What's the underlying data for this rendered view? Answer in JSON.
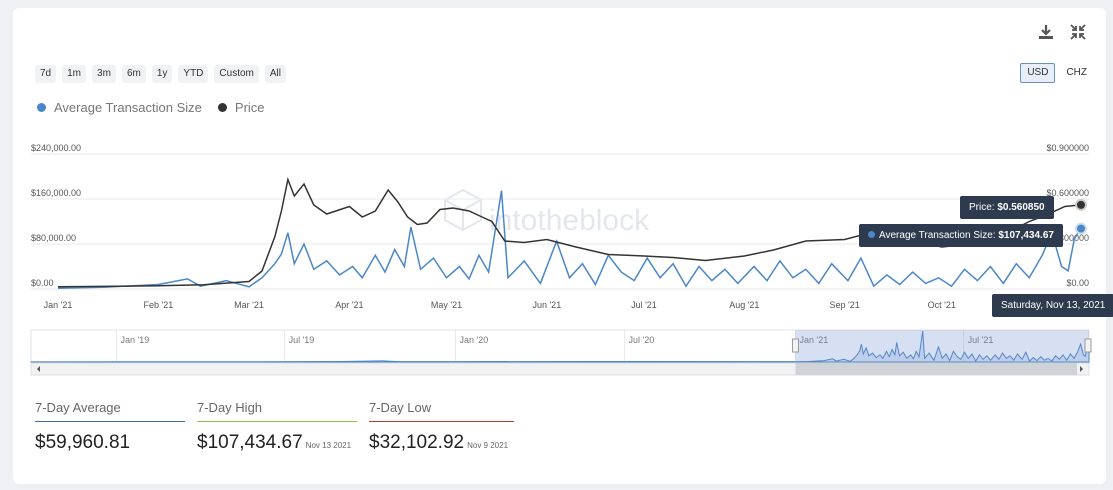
{
  "toolbar": {
    "download_icon": "download-icon",
    "collapse_icon": "collapse-icon"
  },
  "ranges": [
    "7d",
    "1m",
    "3m",
    "6m",
    "1y",
    "YTD",
    "Custom",
    "All"
  ],
  "currencies": [
    "USD",
    "CHZ"
  ],
  "active_currency": "USD",
  "watermark": "intotheblock",
  "tooltip": {
    "price_label": "Price: ",
    "price_value": "$0.560850",
    "ats_label": "Average Transaction Size: ",
    "ats_value": "$107,434.67",
    "date": "Saturday, Nov 13, 2021"
  },
  "chart_data": {
    "type": "line",
    "legend_position": "top-left",
    "series": [
      {
        "name": "Average Transaction Size",
        "color": "#4a86c8",
        "axis": "left"
      },
      {
        "name": "Price",
        "color": "#333333",
        "axis": "right"
      }
    ],
    "y_left": {
      "ticks": [
        "$0.00",
        "$80,000.00",
        "$160,000.00",
        "$240,000.00"
      ],
      "range": [
        0,
        240000
      ]
    },
    "y_right": {
      "ticks": [
        "$0.00",
        "$0.300000",
        "$0.600000",
        "$0.900000"
      ],
      "range": [
        0,
        0.9
      ]
    },
    "x_ticks": [
      "Jan '21",
      "Feb '21",
      "Mar '21",
      "Apr '21",
      "May '21",
      "Jun '21",
      "Jul '21",
      "Aug '21",
      "Sep '21",
      "Oct '21"
    ],
    "x_range": [
      "2021-01-01",
      "2021-11-13"
    ],
    "price_points": [
      [
        "2021-01-01",
        0.015
      ],
      [
        "2021-01-15",
        0.017
      ],
      [
        "2021-02-01",
        0.022
      ],
      [
        "2021-02-15",
        0.028
      ],
      [
        "2021-03-01",
        0.05
      ],
      [
        "2021-03-05",
        0.12
      ],
      [
        "2021-03-09",
        0.35
      ],
      [
        "2021-03-11",
        0.52
      ],
      [
        "2021-03-13",
        0.73
      ],
      [
        "2021-03-15",
        0.62
      ],
      [
        "2021-03-18",
        0.7
      ],
      [
        "2021-03-21",
        0.56
      ],
      [
        "2021-03-25",
        0.5
      ],
      [
        "2021-04-01",
        0.55
      ],
      [
        "2021-04-05",
        0.48
      ],
      [
        "2021-04-09",
        0.52
      ],
      [
        "2021-04-13",
        0.66
      ],
      [
        "2021-04-16",
        0.58
      ],
      [
        "2021-04-19",
        0.48
      ],
      [
        "2021-04-22",
        0.43
      ],
      [
        "2021-04-25",
        0.44
      ],
      [
        "2021-04-29",
        0.53
      ],
      [
        "2021-05-03",
        0.54
      ],
      [
        "2021-05-08",
        0.52
      ],
      [
        "2021-05-12",
        0.48
      ],
      [
        "2021-05-15",
        0.45
      ],
      [
        "2021-05-19",
        0.32
      ],
      [
        "2021-05-25",
        0.31
      ],
      [
        "2021-06-01",
        0.33
      ],
      [
        "2021-06-10",
        0.28
      ],
      [
        "2021-06-20",
        0.23
      ],
      [
        "2021-07-01",
        0.22
      ],
      [
        "2021-07-10",
        0.21
      ],
      [
        "2021-07-20",
        0.19
      ],
      [
        "2021-08-01",
        0.22
      ],
      [
        "2021-08-10",
        0.26
      ],
      [
        "2021-08-20",
        0.32
      ],
      [
        "2021-09-01",
        0.33
      ],
      [
        "2021-09-08",
        0.37
      ],
      [
        "2021-09-15",
        0.33
      ],
      [
        "2021-09-25",
        0.31
      ],
      [
        "2021-10-01",
        0.28
      ],
      [
        "2021-10-10",
        0.3
      ],
      [
        "2021-10-20",
        0.36
      ],
      [
        "2021-10-28",
        0.45
      ],
      [
        "2021-11-03",
        0.5
      ],
      [
        "2021-11-08",
        0.55
      ],
      [
        "2021-11-13",
        0.56085
      ]
    ],
    "ats_points": [
      [
        "2021-01-01",
        1500
      ],
      [
        "2021-01-15",
        3000
      ],
      [
        "2021-02-01",
        8000
      ],
      [
        "2021-02-10",
        18000
      ],
      [
        "2021-02-14",
        5000
      ],
      [
        "2021-02-22",
        15000
      ],
      [
        "2021-03-01",
        4000
      ],
      [
        "2021-03-05",
        20000
      ],
      [
        "2021-03-09",
        45000
      ],
      [
        "2021-03-11",
        62000
      ],
      [
        "2021-03-13",
        100000
      ],
      [
        "2021-03-15",
        45000
      ],
      [
        "2021-03-18",
        80000
      ],
      [
        "2021-03-21",
        35000
      ],
      [
        "2021-03-25",
        50000
      ],
      [
        "2021-03-29",
        25000
      ],
      [
        "2021-04-02",
        40000
      ],
      [
        "2021-04-05",
        20000
      ],
      [
        "2021-04-09",
        60000
      ],
      [
        "2021-04-12",
        30000
      ],
      [
        "2021-04-15",
        70000
      ],
      [
        "2021-04-18",
        40000
      ],
      [
        "2021-04-20",
        110000
      ],
      [
        "2021-04-23",
        35000
      ],
      [
        "2021-04-27",
        55000
      ],
      [
        "2021-05-01",
        20000
      ],
      [
        "2021-05-05",
        40000
      ],
      [
        "2021-05-08",
        18000
      ],
      [
        "2021-05-11",
        60000
      ],
      [
        "2021-05-14",
        30000
      ],
      [
        "2021-05-18",
        175000
      ],
      [
        "2021-05-20",
        20000
      ],
      [
        "2021-05-25",
        50000
      ],
      [
        "2021-05-30",
        10000
      ],
      [
        "2021-06-04",
        85000
      ],
      [
        "2021-06-08",
        20000
      ],
      [
        "2021-06-12",
        45000
      ],
      [
        "2021-06-16",
        8000
      ],
      [
        "2021-06-20",
        60000
      ],
      [
        "2021-06-24",
        30000
      ],
      [
        "2021-06-28",
        15000
      ],
      [
        "2021-07-02",
        55000
      ],
      [
        "2021-07-06",
        20000
      ],
      [
        "2021-07-10",
        45000
      ],
      [
        "2021-07-14",
        5000
      ],
      [
        "2021-07-18",
        40000
      ],
      [
        "2021-07-22",
        15000
      ],
      [
        "2021-07-26",
        35000
      ],
      [
        "2021-07-30",
        10000
      ],
      [
        "2021-08-04",
        40000
      ],
      [
        "2021-08-08",
        15000
      ],
      [
        "2021-08-12",
        50000
      ],
      [
        "2021-08-16",
        20000
      ],
      [
        "2021-08-20",
        35000
      ],
      [
        "2021-08-24",
        10000
      ],
      [
        "2021-08-28",
        45000
      ],
      [
        "2021-09-02",
        15000
      ],
      [
        "2021-09-06",
        55000
      ],
      [
        "2021-09-10",
        5000
      ],
      [
        "2021-09-14",
        25000
      ],
      [
        "2021-09-18",
        8000
      ],
      [
        "2021-09-22",
        30000
      ],
      [
        "2021-09-26",
        10000
      ],
      [
        "2021-09-30",
        20000
      ],
      [
        "2021-10-04",
        5000
      ],
      [
        "2021-10-08",
        35000
      ],
      [
        "2021-10-12",
        15000
      ],
      [
        "2021-10-16",
        40000
      ],
      [
        "2021-10-20",
        10000
      ],
      [
        "2021-10-24",
        45000
      ],
      [
        "2021-10-28",
        20000
      ],
      [
        "2021-11-01",
        60000
      ],
      [
        "2021-11-04",
        100000
      ],
      [
        "2021-11-07",
        40000
      ],
      [
        "2021-11-09",
        32103
      ],
      [
        "2021-11-11",
        90000
      ],
      [
        "2021-11-13",
        107435
      ]
    ]
  },
  "navigator": {
    "ticks": [
      "Jan '19",
      "Jul '19",
      "Jan '20",
      "Jul '20",
      "Jan '21",
      "Jul '21"
    ],
    "range": [
      "2018-10-01",
      "2021-11-13"
    ],
    "selection": [
      "2021-01-01",
      "2021-11-13"
    ]
  },
  "stats": [
    {
      "label": "7-Day Average",
      "value": "$59,960.81",
      "date": "",
      "color": "#3b6ea5"
    },
    {
      "label": "7-Day High",
      "value": "$107,434.67",
      "date": "Nov 13 2021",
      "color": "#8fc24a"
    },
    {
      "label": "7-Day Low",
      "value": "$32,102.92",
      "date": "Nov 9 2021",
      "color": "#c0392b"
    }
  ]
}
